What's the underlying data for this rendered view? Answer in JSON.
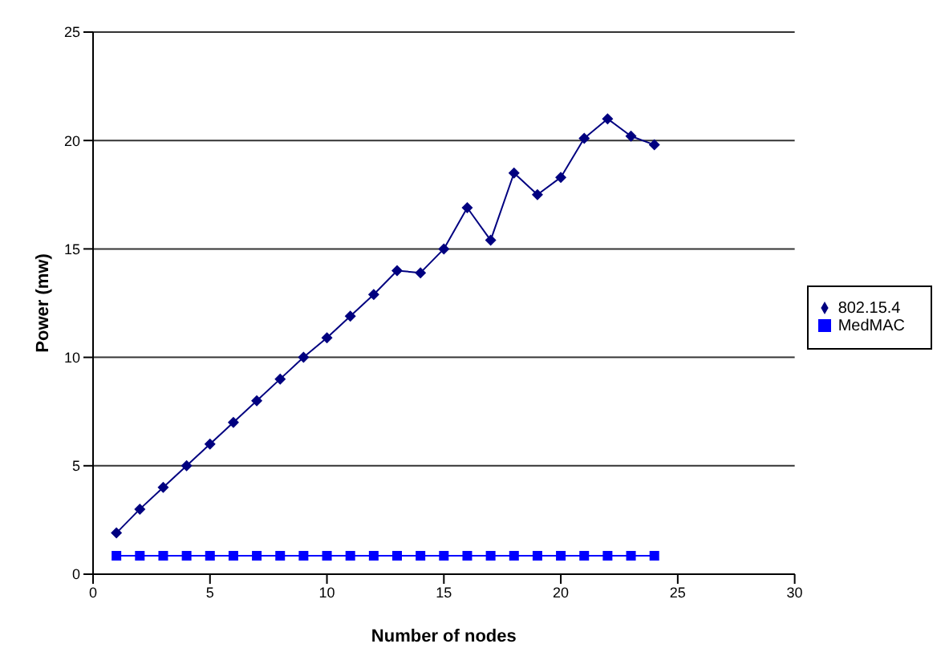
{
  "chart_data": {
    "type": "line",
    "xlabel": "Number of nodes",
    "ylabel": "Power (mw)",
    "x": [
      1,
      2,
      3,
      4,
      5,
      6,
      7,
      8,
      9,
      10,
      11,
      12,
      13,
      14,
      15,
      16,
      17,
      18,
      19,
      20,
      21,
      22,
      23,
      24
    ],
    "series": [
      {
        "name": "802.15.4",
        "color": "#000080",
        "marker": "diamond",
        "values": [
          1.9,
          3,
          4,
          5,
          6,
          7,
          8,
          9,
          10,
          10.9,
          11.9,
          12.9,
          14,
          13.9,
          15,
          16.9,
          15.4,
          18.5,
          17.5,
          18.3,
          20.1,
          21,
          20.2,
          19.8
        ]
      },
      {
        "name": "MedMAC",
        "color": "#0000ff",
        "marker": "square",
        "values": [
          0.85,
          0.85,
          0.85,
          0.85,
          0.85,
          0.85,
          0.85,
          0.85,
          0.85,
          0.85,
          0.85,
          0.85,
          0.85,
          0.85,
          0.85,
          0.85,
          0.85,
          0.85,
          0.85,
          0.85,
          0.85,
          0.85,
          0.85,
          0.85
        ]
      }
    ],
    "xlim": [
      0,
      30
    ],
    "xticks": [
      0,
      5,
      10,
      15,
      20,
      25,
      30
    ],
    "ylim": [
      0,
      25
    ],
    "yticks": [
      0,
      5,
      10,
      15,
      20,
      25
    ],
    "grid": "y",
    "legend": "right"
  }
}
